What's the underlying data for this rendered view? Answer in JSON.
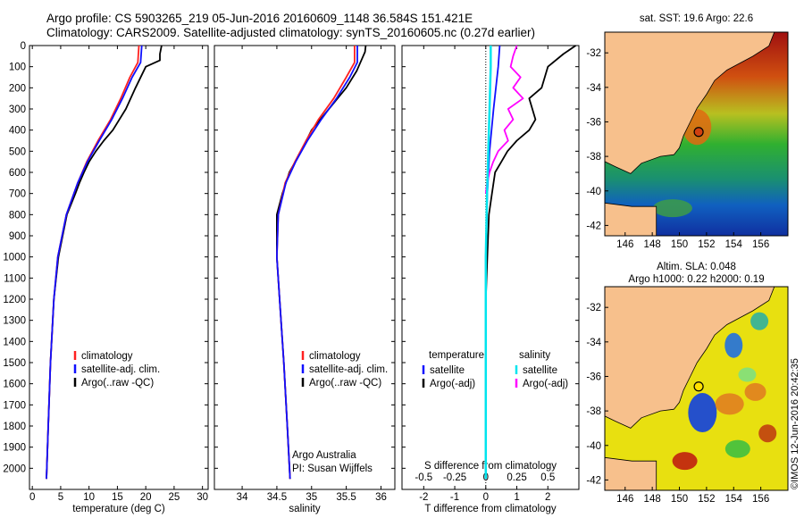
{
  "header": {
    "line1": "Argo profile: CS 5903265_219 05-Jun-2016 20160609_1148 36.584S 151.421E",
    "line2": "Climatology: CARS2009. Satellite-adjusted climatology: synTS_20160605.nc (0.27d earlier)"
  },
  "credit": "©IMOS 12-Jun-2016 20:42:35",
  "colors": {
    "climatology": "#ff2020",
    "satellite": "#1010ff",
    "argo": "#000000",
    "satellite_salinity": "#00e5ee",
    "argo_salinity": "#ff00ff",
    "land": "#f7c08c"
  },
  "chart_data": [
    {
      "type": "line",
      "panel": "temperature",
      "xlabel": "temperature (deg C)",
      "ylabel": "",
      "xlim": [
        -0.5,
        31
      ],
      "ylim": [
        2100,
        0
      ],
      "x_ticks": [
        0,
        5,
        10,
        15,
        20,
        25,
        30
      ],
      "y_ticks": [
        0,
        100,
        200,
        300,
        400,
        500,
        600,
        700,
        800,
        900,
        1000,
        1100,
        1200,
        1300,
        1400,
        1500,
        1600,
        1700,
        1800,
        1900,
        2000
      ],
      "legend_position": "lower-center",
      "series": [
        {
          "name": "climatology",
          "color": "#ff2020",
          "depth": [
            0,
            80,
            150,
            250,
            350,
            450,
            550,
            650,
            800,
            1000,
            1200,
            1500,
            1800,
            2050
          ],
          "values": [
            18.8,
            18.6,
            17.2,
            15.6,
            13.8,
            11.6,
            9.6,
            8.0,
            6.0,
            4.5,
            3.8,
            3.2,
            2.8,
            2.5
          ]
        },
        {
          "name": "satellite-adj. clim.",
          "color": "#1010ff",
          "depth": [
            0,
            80,
            150,
            250,
            350,
            450,
            550,
            650,
            800,
            1000,
            1200,
            1500,
            1800,
            2050
          ],
          "values": [
            19.3,
            19.1,
            17.6,
            15.9,
            14.0,
            11.8,
            9.7,
            8.0,
            6.0,
            4.5,
            3.8,
            3.2,
            2.8,
            2.5
          ]
        },
        {
          "name": "Argo(..raw -QC)",
          "color": "#000000",
          "depth": [
            0,
            40,
            70,
            100,
            200,
            300,
            400,
            450,
            500,
            550,
            600,
            650,
            700,
            800,
            1000,
            1200,
            1500,
            1800,
            2050
          ],
          "values": [
            22.8,
            22.5,
            22.5,
            20.0,
            18.2,
            16.5,
            14.2,
            12.6,
            11.2,
            10.0,
            9.1,
            8.3,
            7.6,
            6.1,
            4.6,
            3.8,
            3.2,
            2.8,
            2.5
          ]
        }
      ]
    },
    {
      "type": "line",
      "panel": "salinity",
      "xlabel": "salinity",
      "ylabel": "",
      "xlim": [
        33.6,
        36.2
      ],
      "ylim": [
        2100,
        0
      ],
      "x_ticks": [
        34,
        34.5,
        35,
        35.5,
        36
      ],
      "x_tick_labels": [
        "34",
        "34.5",
        "35",
        "35.5",
        "36"
      ],
      "legend_position": "lower-right",
      "annotation": [
        "Argo Australia",
        "PI: Susan Wijffels"
      ],
      "series": [
        {
          "name": "climatology",
          "color": "#ff2020",
          "depth": [
            0,
            80,
            150,
            250,
            350,
            450,
            550,
            650,
            800,
            1000,
            1200,
            1500,
            1800,
            2050
          ],
          "values": [
            35.62,
            35.62,
            35.5,
            35.32,
            35.1,
            34.92,
            34.76,
            34.62,
            34.52,
            34.5,
            34.54,
            34.6,
            34.65,
            34.69
          ]
        },
        {
          "name": "satellite-adj. clim.",
          "color": "#1010ff",
          "depth": [
            0,
            80,
            150,
            250,
            350,
            450,
            550,
            650,
            800,
            1000,
            1200,
            1500,
            1800,
            2050
          ],
          "values": [
            35.66,
            35.66,
            35.55,
            35.36,
            35.14,
            34.94,
            34.77,
            34.63,
            34.52,
            34.5,
            34.54,
            34.6,
            34.65,
            34.69
          ]
        },
        {
          "name": "Argo(..raw -QC)",
          "color": "#000000",
          "depth": [
            0,
            30,
            60,
            120,
            200,
            300,
            400,
            500,
            600,
            700,
            800,
            900,
            1000,
            1200,
            1500,
            1800,
            2050
          ],
          "values": [
            35.78,
            35.77,
            35.73,
            35.65,
            35.5,
            35.25,
            35.0,
            34.85,
            34.68,
            34.58,
            34.5,
            34.5,
            34.5,
            34.54,
            34.6,
            34.65,
            34.69
          ]
        }
      ]
    },
    {
      "type": "line",
      "panel": "difference",
      "xlabel": "T difference from climatology",
      "xlabel_top": "S difference from climatology",
      "ylabel": "",
      "xlim": [
        -2.7,
        3.0
      ],
      "ylim": [
        2100,
        0
      ],
      "x_ticks": [
        -2,
        -1,
        0,
        1,
        2
      ],
      "x_tick_labels": [
        "-2",
        "-1",
        "0",
        "1",
        "2"
      ],
      "x_ticks_salinity": [
        -0.5,
        -0.25,
        0,
        0.25,
        0.5
      ],
      "x_tick_labels_salinity": [
        "-0.5",
        "-0.25",
        "0",
        "0.25",
        "0.5"
      ],
      "legend_position": "lower",
      "legend_headers": [
        "temperature",
        "salinity"
      ],
      "series": [
        {
          "name": "satellite",
          "group": "temperature",
          "color": "#1010ff",
          "depth": [
            0,
            100,
            300,
            500,
            700,
            1000,
            1500,
            2050
          ],
          "values": [
            0.45,
            0.4,
            0.25,
            0.12,
            0.05,
            0.0,
            0.0,
            0.0
          ]
        },
        {
          "name": "Argo(-adj)",
          "group": "temperature",
          "color": "#000000",
          "depth": [
            0,
            40,
            100,
            200,
            250,
            300,
            350,
            400,
            450,
            500,
            550,
            600,
            700,
            800,
            1000,
            1200,
            1500,
            1800,
            2050
          ],
          "values": [
            2.9,
            2.5,
            2.0,
            1.8,
            1.4,
            1.5,
            1.6,
            1.4,
            1.0,
            0.7,
            0.5,
            0.3,
            0.2,
            0.1,
            0.05,
            0.0,
            0.0,
            0.0,
            0.0
          ]
        },
        {
          "name": "satellite",
          "group": "salinity",
          "color": "#00e5ee",
          "depth": [
            0,
            100,
            300,
            500,
            700,
            1000,
            1500,
            2050
          ],
          "values": [
            0.04,
            0.04,
            0.03,
            0.02,
            0.01,
            0.0,
            0.0,
            0.0
          ]
        },
        {
          "name": "Argo(-adj)",
          "group": "salinity",
          "color": "#ff00ff",
          "depth": [
            0,
            50,
            100,
            150,
            200,
            250,
            300,
            350,
            400,
            450,
            500,
            550,
            600,
            650,
            700
          ],
          "values": [
            0.25,
            0.22,
            0.2,
            0.28,
            0.22,
            0.3,
            0.18,
            0.22,
            0.15,
            0.18,
            0.1,
            0.06,
            0.03,
            0.01,
            0.0
          ]
        }
      ]
    },
    {
      "type": "heatmap",
      "panel": "sst-map",
      "title": "sat. SST: 19.6  Argo: 22.6",
      "xlim": [
        144.5,
        158
      ],
      "ylim": [
        -42.6,
        -30.8
      ],
      "x_ticks": [
        146,
        148,
        150,
        152,
        154,
        156
      ],
      "y_ticks": [
        -32,
        -34,
        -36,
        -38,
        -40,
        -42
      ],
      "marker": {
        "lon": 151.421,
        "lat": -36.584
      }
    },
    {
      "type": "heatmap",
      "panel": "sla-map",
      "title": "Altim. SLA: 0.048",
      "subtitle": "Argo h1000: 0.22 h2000: 0.19",
      "xlim": [
        144.5,
        158
      ],
      "ylim": [
        -42.6,
        -30.8
      ],
      "x_ticks": [
        146,
        148,
        150,
        152,
        154,
        156
      ],
      "y_ticks": [
        -32,
        -34,
        -36,
        -38,
        -40,
        -42
      ],
      "marker": {
        "lon": 151.421,
        "lat": -36.584
      }
    }
  ]
}
